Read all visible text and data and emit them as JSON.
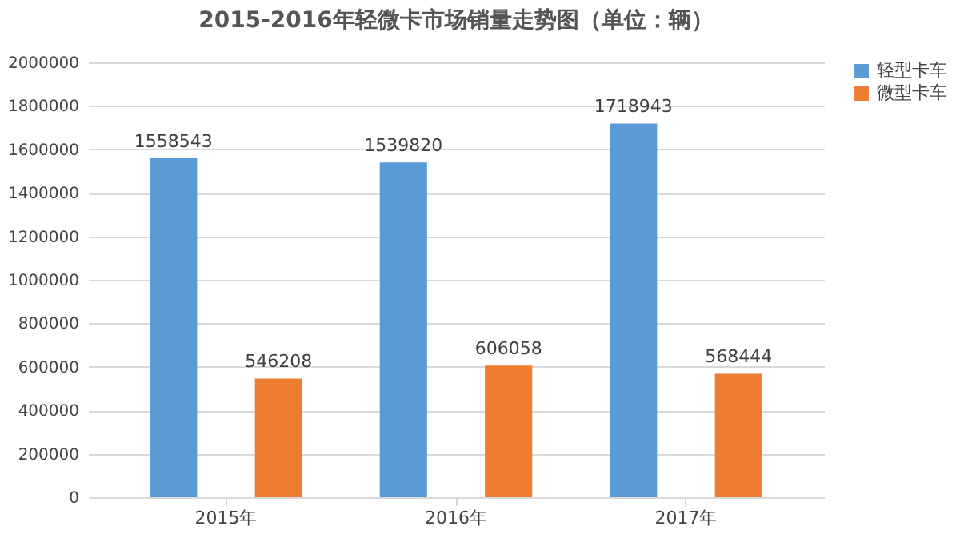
{
  "chart_data": {
    "type": "bar",
    "title": "2015-2016年轻微卡市场销量走势图（单位：辆）",
    "categories": [
      "2015年",
      "2016年",
      "2017年"
    ],
    "series": [
      {
        "name": "轻型卡车",
        "color": "#5b9bd5",
        "values": [
          1558543,
          1539820,
          1718943
        ]
      },
      {
        "name": "微型卡车",
        "color": "#ed7d31",
        "values": [
          546208,
          606058,
          568444
        ]
      }
    ],
    "ylim": [
      0,
      2000000
    ],
    "yticks": [
      0,
      200000,
      400000,
      600000,
      800000,
      1000000,
      1200000,
      1400000,
      1600000,
      1800000,
      2000000
    ],
    "grid": "y",
    "legend": "right",
    "data_labels": true
  }
}
